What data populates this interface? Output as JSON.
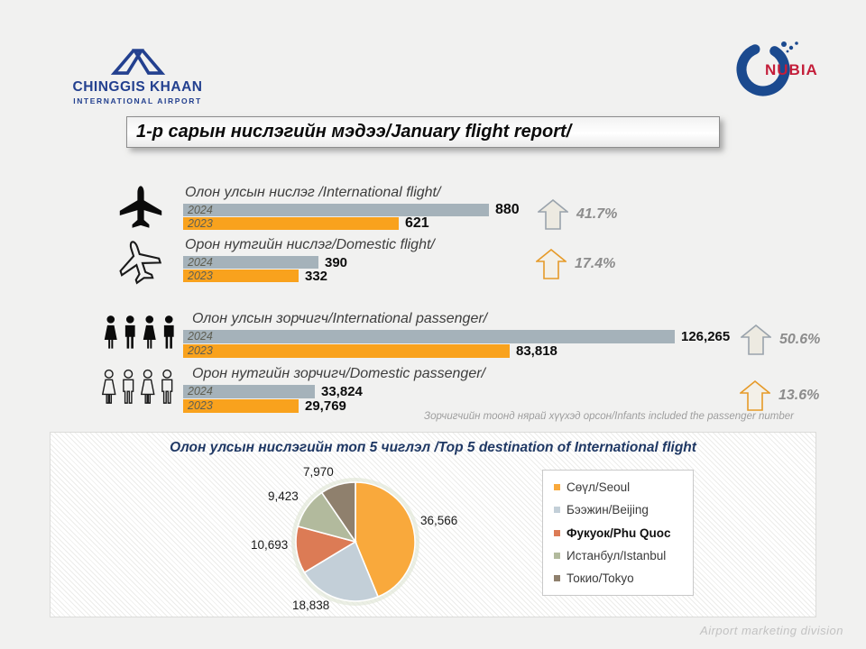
{
  "page": {
    "title": "1-р сарын нислэгийн мэдээ/January flight report/",
    "note": "Зорчигчийн тоонд нярай хүүхэд орсон/Infants included the passenger number",
    "footer": "Airport marketing division",
    "background_color": "#F1F1F0"
  },
  "header": {
    "airport": {
      "name_line1": "CHINGGIS KHAAN",
      "name_line2": "INTERNATIONAL AIRPORT",
      "brand_color": "#23408F"
    },
    "nubia": {
      "text": "NUBIA",
      "text_color": "#C41E3A",
      "ring_color": "#1B4A8F"
    }
  },
  "chart_data": [
    {
      "type": "bar",
      "id": "international-flight",
      "title": "Олон улсын нислэг /International flight/",
      "categories": [
        "2024",
        "2023"
      ],
      "values": [
        880,
        621
      ],
      "value_labels": [
        "880",
        "621"
      ],
      "colors": [
        "#A5B2BA",
        "#F9A21D"
      ],
      "xlim": [
        0,
        880
      ],
      "change_label": "41.7%",
      "trend": "up",
      "arrow_color": "#9AA3AC"
    },
    {
      "type": "bar",
      "id": "domestic-flight",
      "title": "Орон нутгийн нислэг/Domestic flight/",
      "categories": [
        "2024",
        "2023"
      ],
      "values": [
        390,
        332
      ],
      "value_labels": [
        "390",
        "332"
      ],
      "colors": [
        "#A5B2BA",
        "#F9A21D"
      ],
      "xlim": [
        0,
        880
      ],
      "change_label": "17.4%",
      "trend": "up",
      "arrow_color": "#E69A28"
    },
    {
      "type": "bar",
      "id": "international-passenger",
      "title": "Олон улсын зорчигч/International passenger/",
      "categories": [
        "2024",
        "2023"
      ],
      "values": [
        126265,
        83818
      ],
      "value_labels": [
        "126,265",
        "83,818"
      ],
      "colors": [
        "#A5B2BA",
        "#F9A21D"
      ],
      "xlim": [
        0,
        126265
      ],
      "change_label": "50.6%",
      "trend": "up",
      "arrow_color": "#9AA3AC"
    },
    {
      "type": "bar",
      "id": "domestic-passenger",
      "title": "Орон нутгийн зорчигч/Domestic passenger/",
      "categories": [
        "2024",
        "2023"
      ],
      "values": [
        33824,
        29769
      ],
      "value_labels": [
        "33,824",
        "29,769"
      ],
      "colors": [
        "#A5B2BA",
        "#F9A21D"
      ],
      "xlim": [
        0,
        126265
      ],
      "change_label": "13.6%",
      "trend": "up",
      "arrow_color": "#E69A28"
    },
    {
      "type": "pie",
      "id": "top5-destinations",
      "title": "Олон улсын нислэгийн топ 5 чиглэл /Top 5 destination of International flight",
      "labels": [
        "Сөүл/Seoul",
        "Бээжин/Beijing",
        "Фукуок/Phu Quoc",
        "Истанбул/Istanbul",
        "Токио/Tokyo"
      ],
      "values": [
        36566,
        18838,
        10693,
        9423,
        7970
      ],
      "value_labels": [
        "36,566",
        "18,838",
        "10,693",
        "9,423",
        "7,970"
      ],
      "colors": [
        "#F9A93C",
        "#C3CFD8",
        "#DC7B55",
        "#B2BA9D",
        "#8F806D"
      ],
      "legend_position": "right",
      "emphasized_legend_index": 2,
      "start_angle_deg": -90,
      "direction": "clockwise"
    }
  ]
}
